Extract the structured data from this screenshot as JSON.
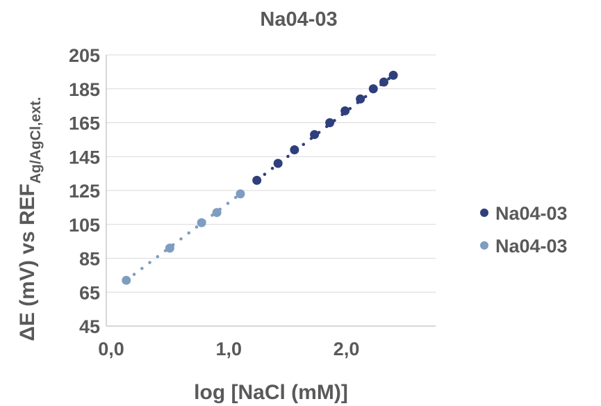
{
  "chart_data": {
    "type": "scatter",
    "title": "Na04-03",
    "xlabel": "log [NaCl (mM)]",
    "ylabel": {
      "main": "ΔE (mV) vs REF",
      "subscript": "Ag/AgCl,ext."
    },
    "xlim": [
      0.0,
      2.8
    ],
    "ylim": [
      45,
      205
    ],
    "x_ticks": [
      {
        "value": 0.0,
        "label": "0,0"
      },
      {
        "value": 1.0,
        "label": "1,0"
      },
      {
        "value": 2.0,
        "label": "2,0"
      }
    ],
    "y_ticks": [
      {
        "value": 45,
        "label": "45"
      },
      {
        "value": 65,
        "label": "65"
      },
      {
        "value": 85,
        "label": "85"
      },
      {
        "value": 105,
        "label": "105"
      },
      {
        "value": 125,
        "label": "125"
      },
      {
        "value": 145,
        "label": "145"
      },
      {
        "value": 165,
        "label": "165"
      },
      {
        "value": 185,
        "label": "185"
      },
      {
        "value": 205,
        "label": "205"
      }
    ],
    "grid": "horizontal",
    "legend_position": "right",
    "series": [
      {
        "name": "Na04-03",
        "color": "#2e3f7c",
        "trendline": "dotted",
        "points": [
          {
            "x": 1.28,
            "y": 131
          },
          {
            "x": 1.46,
            "y": 141
          },
          {
            "x": 1.6,
            "y": 149
          },
          {
            "x": 1.77,
            "y": 158
          },
          {
            "x": 1.9,
            "y": 165
          },
          {
            "x": 2.03,
            "y": 172
          },
          {
            "x": 2.16,
            "y": 179
          },
          {
            "x": 2.27,
            "y": 185
          },
          {
            "x": 2.36,
            "y": 189
          },
          {
            "x": 2.44,
            "y": 193
          }
        ]
      },
      {
        "name": "Na04-03",
        "color": "#7f9dc0",
        "trendline": "dotted",
        "points": [
          {
            "x": 0.17,
            "y": 72
          },
          {
            "x": 0.54,
            "y": 91
          },
          {
            "x": 0.81,
            "y": 106
          },
          {
            "x": 0.94,
            "y": 112
          },
          {
            "x": 1.14,
            "y": 123
          }
        ]
      }
    ]
  }
}
